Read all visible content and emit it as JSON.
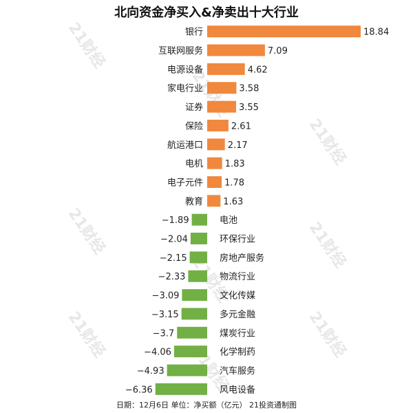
{
  "chart_data": {
    "type": "bar",
    "orientation": "horizontal",
    "title": "北向资金净买入&净卖出十大行业",
    "categories": [
      "银行",
      "互联网服务",
      "电源设备",
      "家电行业",
      "证券",
      "保险",
      "航运港口",
      "电机",
      "电子元件",
      "教育",
      "电池",
      "环保行业",
      "房地产服务",
      "物流行业",
      "文化传媒",
      "多元金融",
      "煤炭行业",
      "化学制药",
      "汽车服务",
      "风电设备"
    ],
    "values": [
      18.84,
      7.09,
      4.62,
      3.58,
      3.55,
      2.61,
      2.17,
      1.83,
      1.78,
      1.63,
      -1.89,
      -2.04,
      -2.15,
      -2.33,
      -3.09,
      -3.15,
      -3.7,
      -4.06,
      -4.93,
      -6.36
    ],
    "value_labels": [
      "18.84",
      "7.09",
      "4.62",
      "3.58",
      "3.55",
      "2.61",
      "2.17",
      "1.83",
      "1.78",
      "1.63",
      "−1.89",
      "−2.04",
      "−2.15",
      "−2.33",
      "−3.09",
      "−3.15",
      "−3.7",
      "−4.06",
      "−4.93",
      "−6.36"
    ],
    "positive_color": "#f0883e",
    "negative_color": "#72b046",
    "xlim": [
      -6.36,
      18.84
    ],
    "grid": false,
    "legend": "none",
    "footer": "日期：12月6日 单位：净买额（亿元） 21投资通制图",
    "watermark": "21财经"
  }
}
